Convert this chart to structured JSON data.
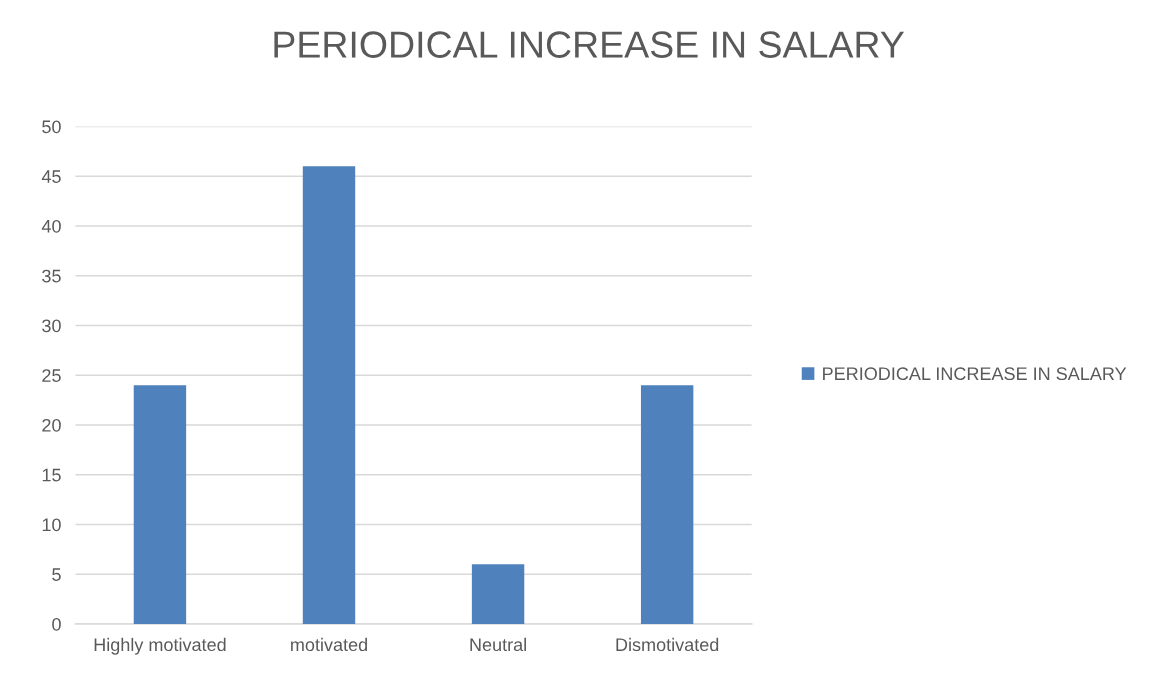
{
  "chart_data": {
    "type": "bar",
    "title": "PERIODICAL INCREASE IN SALARY",
    "categories": [
      "Highly motivated",
      "motivated",
      "Neutral",
      "Dismotivated"
    ],
    "series": [
      {
        "name": "PERIODICAL INCREASE IN SALARY",
        "color": "#4f81bd",
        "values": [
          24,
          46,
          6,
          24
        ]
      }
    ],
    "ylim": [
      0,
      50
    ],
    "yticks": [
      0,
      5,
      10,
      15,
      20,
      25,
      30,
      35,
      40,
      45,
      50
    ],
    "grid": "y",
    "legend": "right"
  }
}
